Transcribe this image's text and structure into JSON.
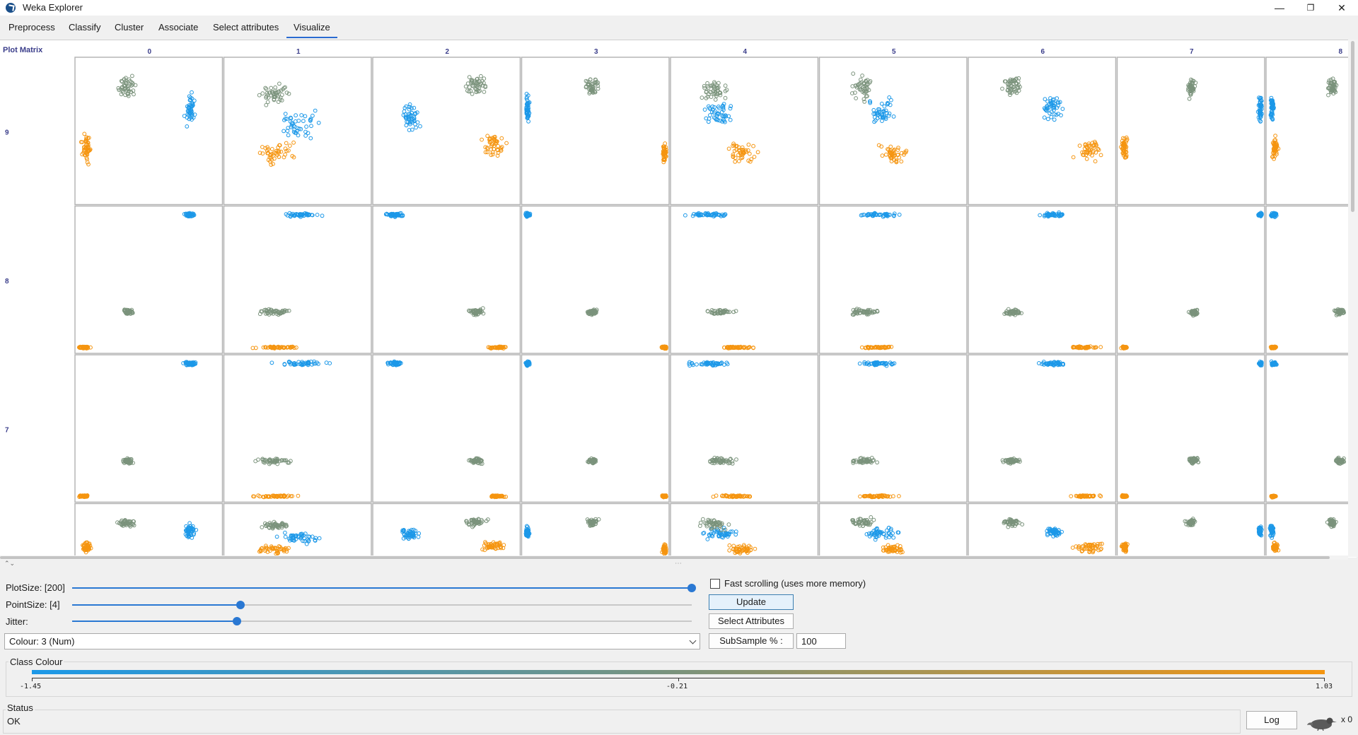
{
  "app": {
    "title": "Weka Explorer"
  },
  "window_controls": {
    "minimize": "—",
    "restore": "❐",
    "close": "✕"
  },
  "tabs": [
    {
      "label": "Preprocess"
    },
    {
      "label": "Classify"
    },
    {
      "label": "Cluster"
    },
    {
      "label": "Associate"
    },
    {
      "label": "Select attributes"
    },
    {
      "label": "Visualize"
    }
  ],
  "active_tab": "Visualize",
  "plot_matrix": {
    "label": "Plot Matrix",
    "col_headers": [
      "0",
      "1",
      "2",
      "3",
      "4",
      "5",
      "6",
      "7",
      "8"
    ],
    "row_headers": [
      "9",
      "8",
      "7"
    ]
  },
  "controls": {
    "plotsize_label": "PlotSize: [200]",
    "pointsize_label": "PointSize: [4]",
    "jitter_label": "Jitter:",
    "plotsize_value": 1.0,
    "pointsize_value": 0.272,
    "jitter_value": 0.266,
    "colour_value": "Colour: 3  (Num)",
    "fast_scroll_label": "Fast scrolling (uses more memory)",
    "fast_scroll_checked": false,
    "update_label": "Update",
    "select_attributes_label": "Select Attributes",
    "subsample_label": "SubSample % :",
    "subsample_value": "100"
  },
  "class_colour": {
    "title": "Class Colour",
    "min_label": "-1.45",
    "mid_label": "-0.21",
    "max_label": "1.03",
    "colors": [
      "#1c98e8",
      "#7b937c",
      "#f59510"
    ]
  },
  "status": {
    "title": "Status",
    "text": "OK"
  },
  "log": {
    "button_label": "Log",
    "count": "x 0"
  }
}
